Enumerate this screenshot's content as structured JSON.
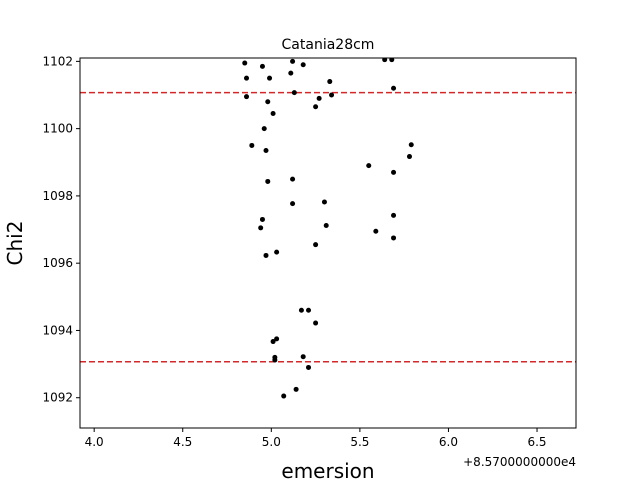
{
  "chart_data": {
    "type": "scatter",
    "title": "Catania28cm",
    "xlabel": "emersion",
    "ylabel": "Chi2",
    "x_offset_label": "+8.5700000000e4",
    "xlim": [
      3.92,
      6.72
    ],
    "ylim": [
      1091.1,
      1102.1
    ],
    "xticks": [
      4.0,
      4.5,
      5.0,
      5.5,
      6.0,
      6.5
    ],
    "xtick_labels": [
      "4.0",
      "4.5",
      "5.0",
      "5.5",
      "6.0",
      "6.5"
    ],
    "yticks": [
      1092,
      1094,
      1096,
      1098,
      1100,
      1102
    ],
    "ytick_labels": [
      "1092",
      "1094",
      "1096",
      "1098",
      "1100",
      "1102"
    ],
    "grid": false,
    "marker_color": "#000000",
    "hlines": [
      {
        "y": 1101.07,
        "color": "#d62728",
        "style": "dashed"
      },
      {
        "y": 1093.07,
        "color": "#d62728",
        "style": "dashed"
      }
    ],
    "points": [
      {
        "x": 4.85,
        "y": 1101.95
      },
      {
        "x": 4.95,
        "y": 1101.85
      },
      {
        "x": 5.12,
        "y": 1102.0
      },
      {
        "x": 5.18,
        "y": 1101.9
      },
      {
        "x": 5.64,
        "y": 1102.05
      },
      {
        "x": 5.68,
        "y": 1102.05
      },
      {
        "x": 4.86,
        "y": 1101.5
      },
      {
        "x": 4.99,
        "y": 1101.5
      },
      {
        "x": 5.11,
        "y": 1101.65
      },
      {
        "x": 5.33,
        "y": 1101.4
      },
      {
        "x": 5.69,
        "y": 1101.2
      },
      {
        "x": 5.13,
        "y": 1101.07
      },
      {
        "x": 4.86,
        "y": 1100.95
      },
      {
        "x": 4.98,
        "y": 1100.8
      },
      {
        "x": 5.27,
        "y": 1100.9
      },
      {
        "x": 5.34,
        "y": 1101.0
      },
      {
        "x": 5.25,
        "y": 1100.65
      },
      {
        "x": 5.01,
        "y": 1100.45
      },
      {
        "x": 4.96,
        "y": 1100.0
      },
      {
        "x": 5.79,
        "y": 1099.52
      },
      {
        "x": 4.89,
        "y": 1099.5
      },
      {
        "x": 4.97,
        "y": 1099.35
      },
      {
        "x": 5.78,
        "y": 1099.17
      },
      {
        "x": 5.55,
        "y": 1098.9
      },
      {
        "x": 5.69,
        "y": 1098.7
      },
      {
        "x": 5.12,
        "y": 1098.5
      },
      {
        "x": 4.98,
        "y": 1098.43
      },
      {
        "x": 5.3,
        "y": 1097.82
      },
      {
        "x": 5.12,
        "y": 1097.77
      },
      {
        "x": 5.69,
        "y": 1097.42
      },
      {
        "x": 4.95,
        "y": 1097.3
      },
      {
        "x": 5.31,
        "y": 1097.12
      },
      {
        "x": 4.94,
        "y": 1097.05
      },
      {
        "x": 5.59,
        "y": 1096.95
      },
      {
        "x": 5.69,
        "y": 1096.75
      },
      {
        "x": 5.25,
        "y": 1096.55
      },
      {
        "x": 5.03,
        "y": 1096.33
      },
      {
        "x": 4.97,
        "y": 1096.23
      },
      {
        "x": 5.17,
        "y": 1094.6
      },
      {
        "x": 5.21,
        "y": 1094.6
      },
      {
        "x": 5.25,
        "y": 1094.22
      },
      {
        "x": 5.03,
        "y": 1093.75
      },
      {
        "x": 5.01,
        "y": 1093.67
      },
      {
        "x": 5.02,
        "y": 1093.2
      },
      {
        "x": 5.18,
        "y": 1093.22
      },
      {
        "x": 5.02,
        "y": 1093.12
      },
      {
        "x": 5.21,
        "y": 1092.9
      },
      {
        "x": 5.14,
        "y": 1092.25
      },
      {
        "x": 5.07,
        "y": 1092.05
      }
    ]
  }
}
